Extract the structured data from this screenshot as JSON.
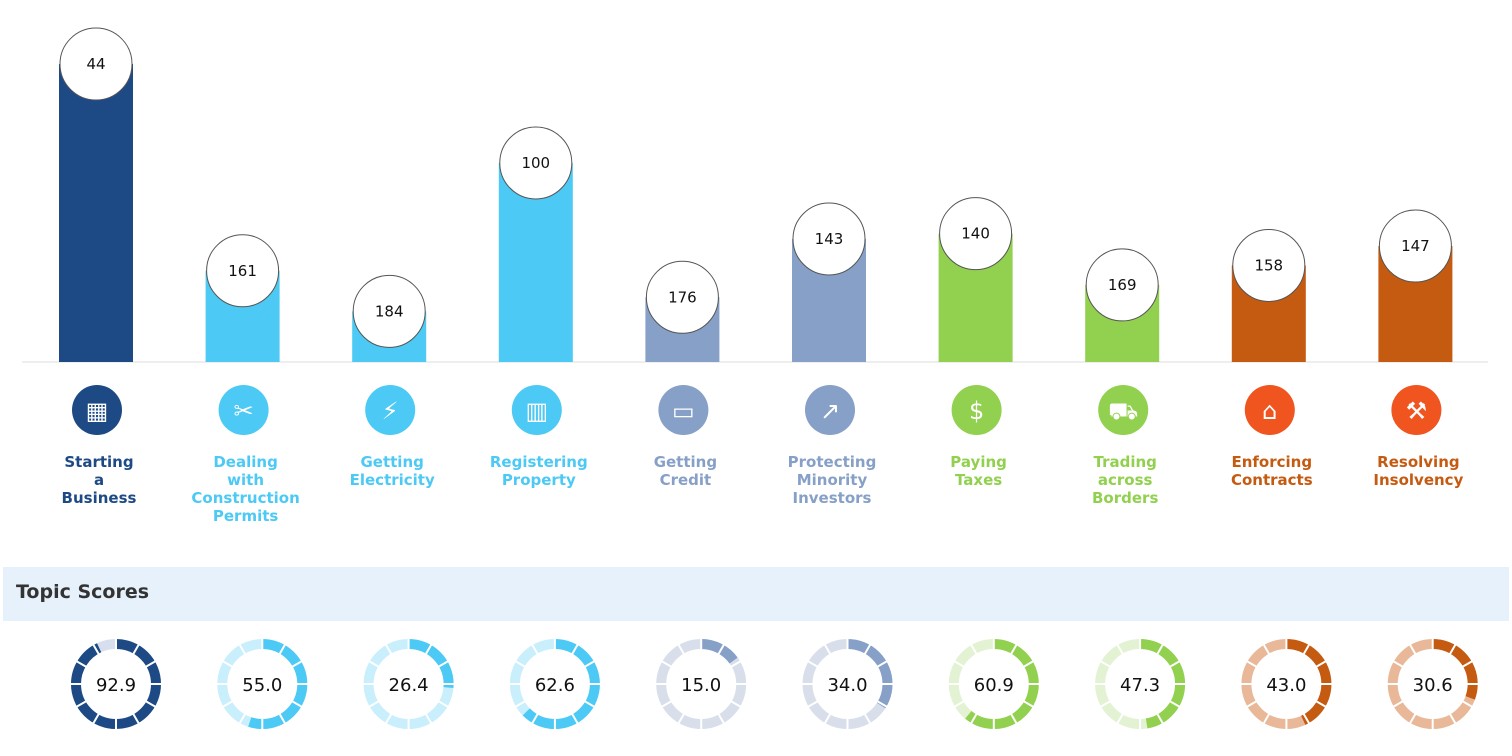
{
  "chart_data": {
    "type": "bar",
    "categories": [
      "Starting a Business",
      "Dealing with Construction Permits",
      "Getting Electricity",
      "Registering Property",
      "Getting Credit",
      "Protecting Minority Investors",
      "Paying Taxes",
      "Trading across Borders",
      "Enforcing Contracts",
      "Resolving Insolvency"
    ],
    "values": [
      44,
      161,
      184,
      100,
      176,
      143,
      140,
      169,
      158,
      147
    ],
    "title": "",
    "xlabel": "",
    "ylabel": "",
    "icons": [
      "building-icon",
      "tools-icon",
      "lightning-icon",
      "office-icon",
      "credit-card-icon",
      "trend-up-icon",
      "money-icon",
      "truck-icon",
      "courthouse-icon",
      "gavel-icon"
    ],
    "colors": [
      "#1d4a85",
      "#4cc9f4",
      "#4cc9f4",
      "#4cc9f4",
      "#87a0c7",
      "#87a0c7",
      "#92d04f",
      "#92d04f",
      "#c55a11",
      "#c55a11"
    ],
    "icon_colors": [
      "#1d4a85",
      "#4cc9f4",
      "#4cc9f4",
      "#4cc9f4",
      "#87a0c7",
      "#87a0c7",
      "#92d04f",
      "#92d04f",
      "#f0541f",
      "#f0541f"
    ],
    "label_colors": [
      "#1d4a85",
      "#4cc9f4",
      "#4cc9f4",
      "#4cc9f4",
      "#87a0c7",
      "#87a0c7",
      "#92d04f",
      "#92d04f",
      "#c55a11",
      "#c55a11"
    ],
    "donut_colors": [
      "#1d4a85",
      "#4cc9f4",
      "#4cc9f4",
      "#4cc9f4",
      "#87a0c7",
      "#87a0c7",
      "#92d04f",
      "#92d04f",
      "#c55a11",
      "#c55a11"
    ],
    "donut_track_colors": [
      "#d7dfee",
      "#c9eefc",
      "#c9eefc",
      "#c9eefc",
      "#d8dfea",
      "#d8dfea",
      "#e2f2d2",
      "#e2f2d2",
      "#e8b898",
      "#e8b898"
    ],
    "topic_scores": [
      92.9,
      55.0,
      26.4,
      62.6,
      15.0,
      34.0,
      60.9,
      47.3,
      43.0,
      30.6
    ]
  },
  "topic_section": {
    "title": "Topic Scores"
  }
}
